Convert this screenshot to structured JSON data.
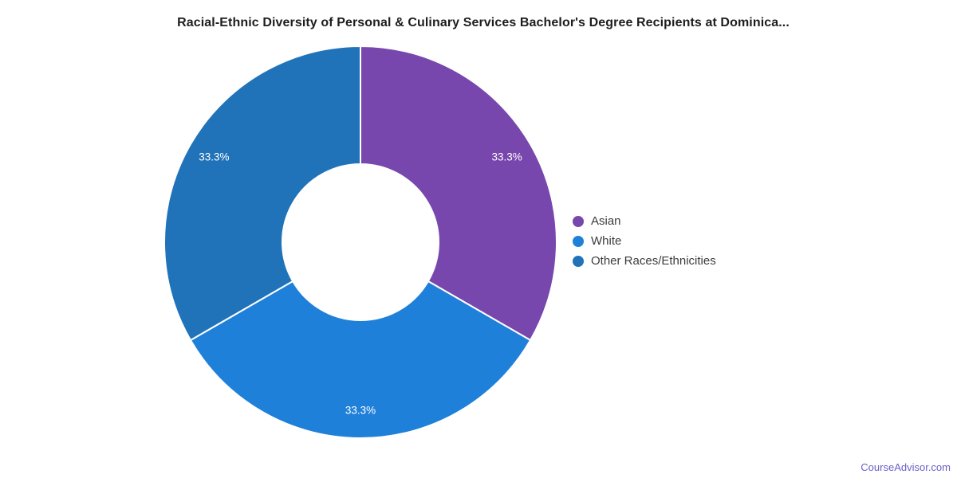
{
  "chart_data": {
    "type": "pie",
    "subtype": "donut",
    "title": "Racial-Ethnic Diversity of Personal & Culinary Services Bachelor's Degree Recipients at Dominica...",
    "categories": [
      "Asian",
      "White",
      "Other Races/Ethnicities"
    ],
    "values": [
      33.3,
      33.3,
      33.3
    ],
    "slice_labels": [
      "33.3%",
      "33.3%",
      "33.3%"
    ],
    "colors": [
      "#7847ad",
      "#1f80da",
      "#2173b9"
    ],
    "start_angle_deg": 0,
    "direction": "clockwise",
    "inner_radius_ratio": 0.4,
    "legend_position": "right",
    "slice_label_color": "#ffffff",
    "divider_color": "#ffffff",
    "legend_text_color": "#3c3c3c",
    "title_color": "#1d1d1d"
  },
  "footer": {
    "link_text": "CourseAdvisor.com",
    "color": "#6a5fc8"
  }
}
